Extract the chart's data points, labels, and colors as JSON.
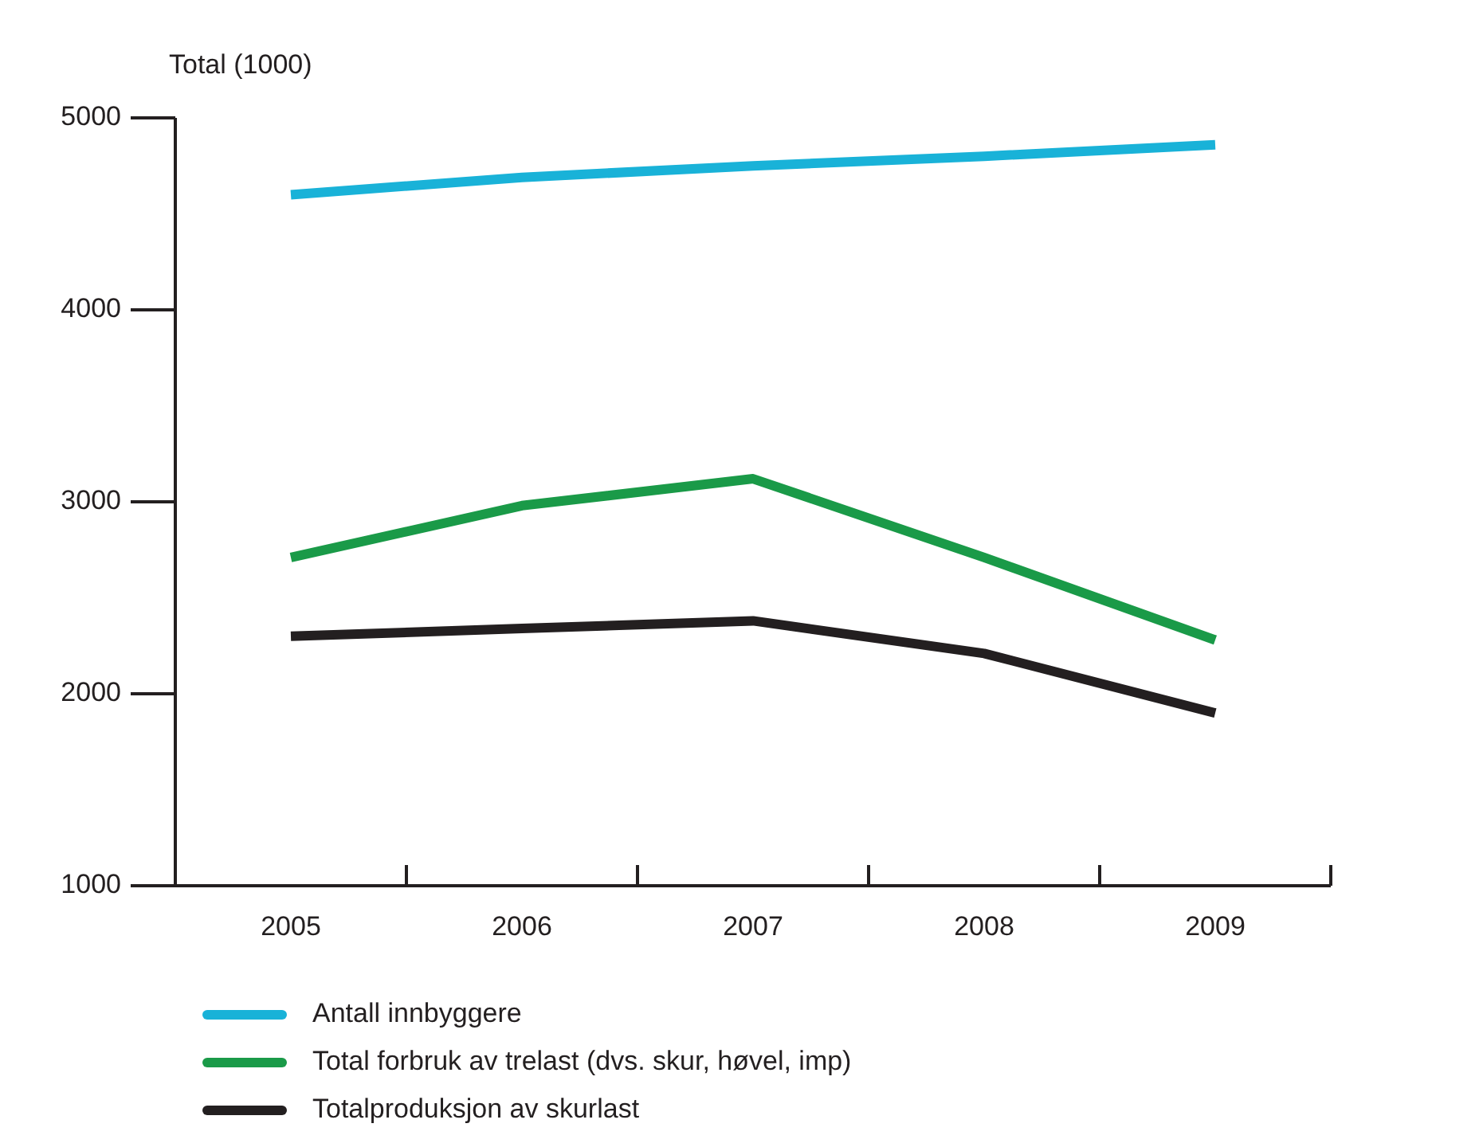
{
  "chart_data": {
    "type": "line",
    "ylabel": "Total (1000)",
    "categories": [
      "2005",
      "2006",
      "2007",
      "2008",
      "2009"
    ],
    "series": [
      {
        "name": "Antall innbyggere",
        "color": "#19b2d8",
        "values": [
          4600,
          4690,
          4750,
          4800,
          4860
        ]
      },
      {
        "name": "Total forbruk av trelast (dvs. skur, høvel, imp)",
        "color": "#1a9a48",
        "values": [
          2710,
          2980,
          3120,
          2710,
          2280
        ]
      },
      {
        "name": "Totalproduksjon av skurlast",
        "color": "#231f20",
        "values": [
          2300,
          2340,
          2380,
          2210,
          1900
        ]
      }
    ],
    "ylim": [
      1000,
      5000
    ],
    "yticks": [
      1000,
      2000,
      3000,
      4000,
      5000
    ],
    "grid": false,
    "legend": "bottom",
    "marker": "none",
    "line_style": "solid"
  }
}
